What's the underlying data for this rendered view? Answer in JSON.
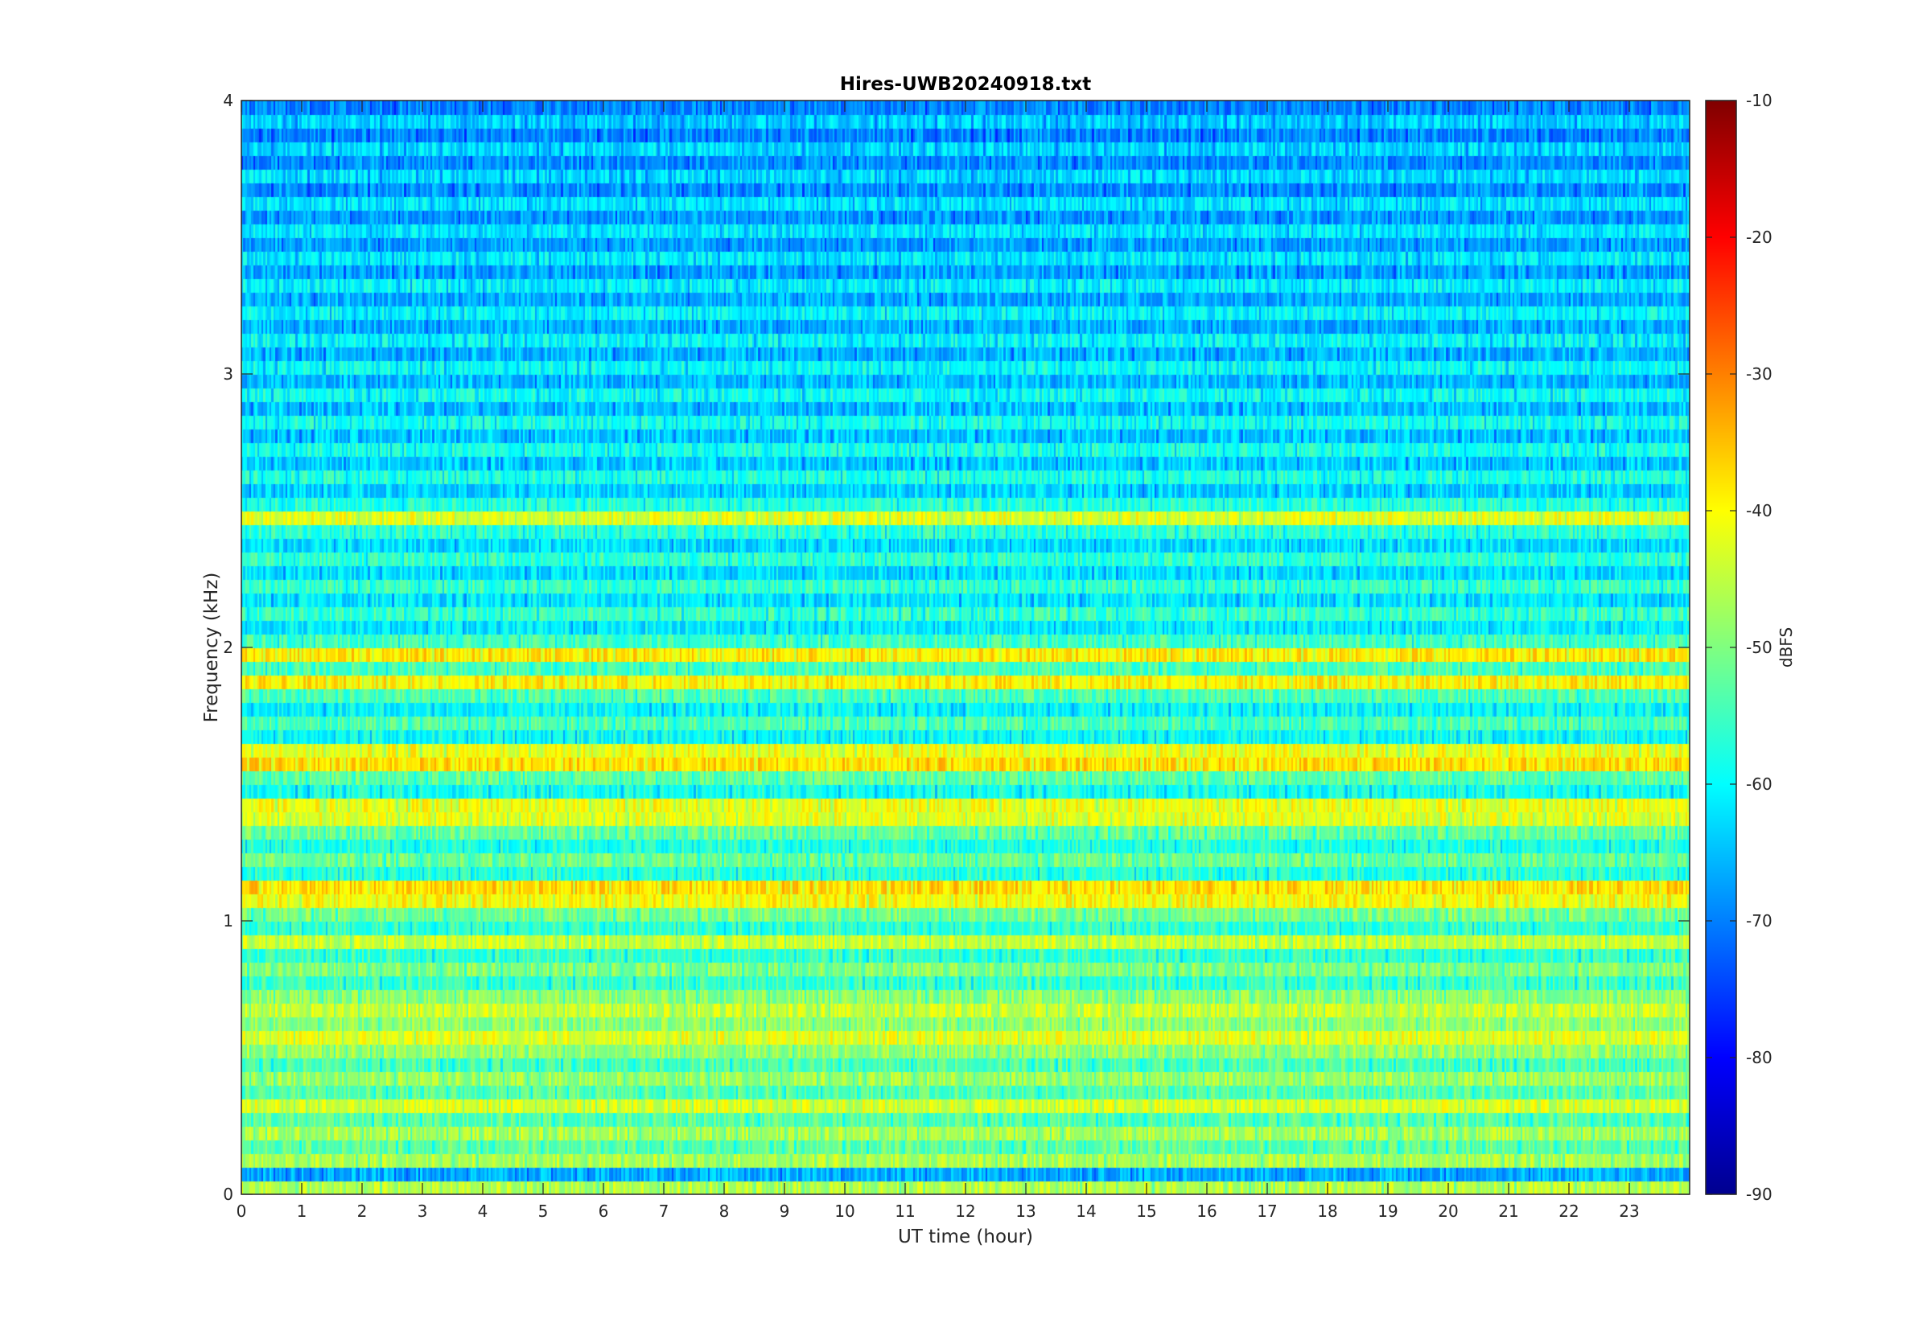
{
  "chart_data": {
    "type": "heatmap",
    "title": "Hires-UWB20240918.txt",
    "xlabel": "UT time (hour)",
    "ylabel": "Frequency (kHz)",
    "xlim": [
      0,
      24
    ],
    "ylim": [
      0,
      4
    ],
    "x_ticks": [
      "0",
      "1",
      "2",
      "3",
      "4",
      "5",
      "6",
      "7",
      "8",
      "9",
      "10",
      "11",
      "12",
      "13",
      "14",
      "15",
      "16",
      "17",
      "18",
      "19",
      "20",
      "21",
      "22",
      "23"
    ],
    "y_ticks": [
      "0",
      "1",
      "2",
      "3",
      "4"
    ],
    "colorbar": {
      "label": "dBFS",
      "range": [
        -90,
        -10
      ],
      "ticks": [
        "-90",
        "-80",
        "-70",
        "-60",
        "-50",
        "-40",
        "-30",
        "-20",
        "-10"
      ],
      "colormap": "jet"
    },
    "dominant_bands": [
      {
        "frequency_khz": 0.05,
        "level_dbfs": -42
      },
      {
        "frequency_khz": 0.35,
        "level_dbfs": -43
      },
      {
        "frequency_khz": 0.55,
        "level_dbfs": -42
      },
      {
        "frequency_khz": 0.65,
        "level_dbfs": -44
      },
      {
        "frequency_khz": 0.95,
        "level_dbfs": -44
      },
      {
        "frequency_khz": 1.05,
        "level_dbfs": -40
      },
      {
        "frequency_khz": 1.15,
        "level_dbfs": -37
      },
      {
        "frequency_khz": 1.35,
        "level_dbfs": -42
      },
      {
        "frequency_khz": 1.45,
        "level_dbfs": -41
      },
      {
        "frequency_khz": 1.55,
        "level_dbfs": -37
      },
      {
        "frequency_khz": 1.65,
        "level_dbfs": -41
      },
      {
        "frequency_khz": 1.85,
        "level_dbfs": -39
      },
      {
        "frequency_khz": 1.95,
        "level_dbfs": -38
      },
      {
        "frequency_khz": 2.45,
        "level_dbfs": -42
      }
    ]
  }
}
